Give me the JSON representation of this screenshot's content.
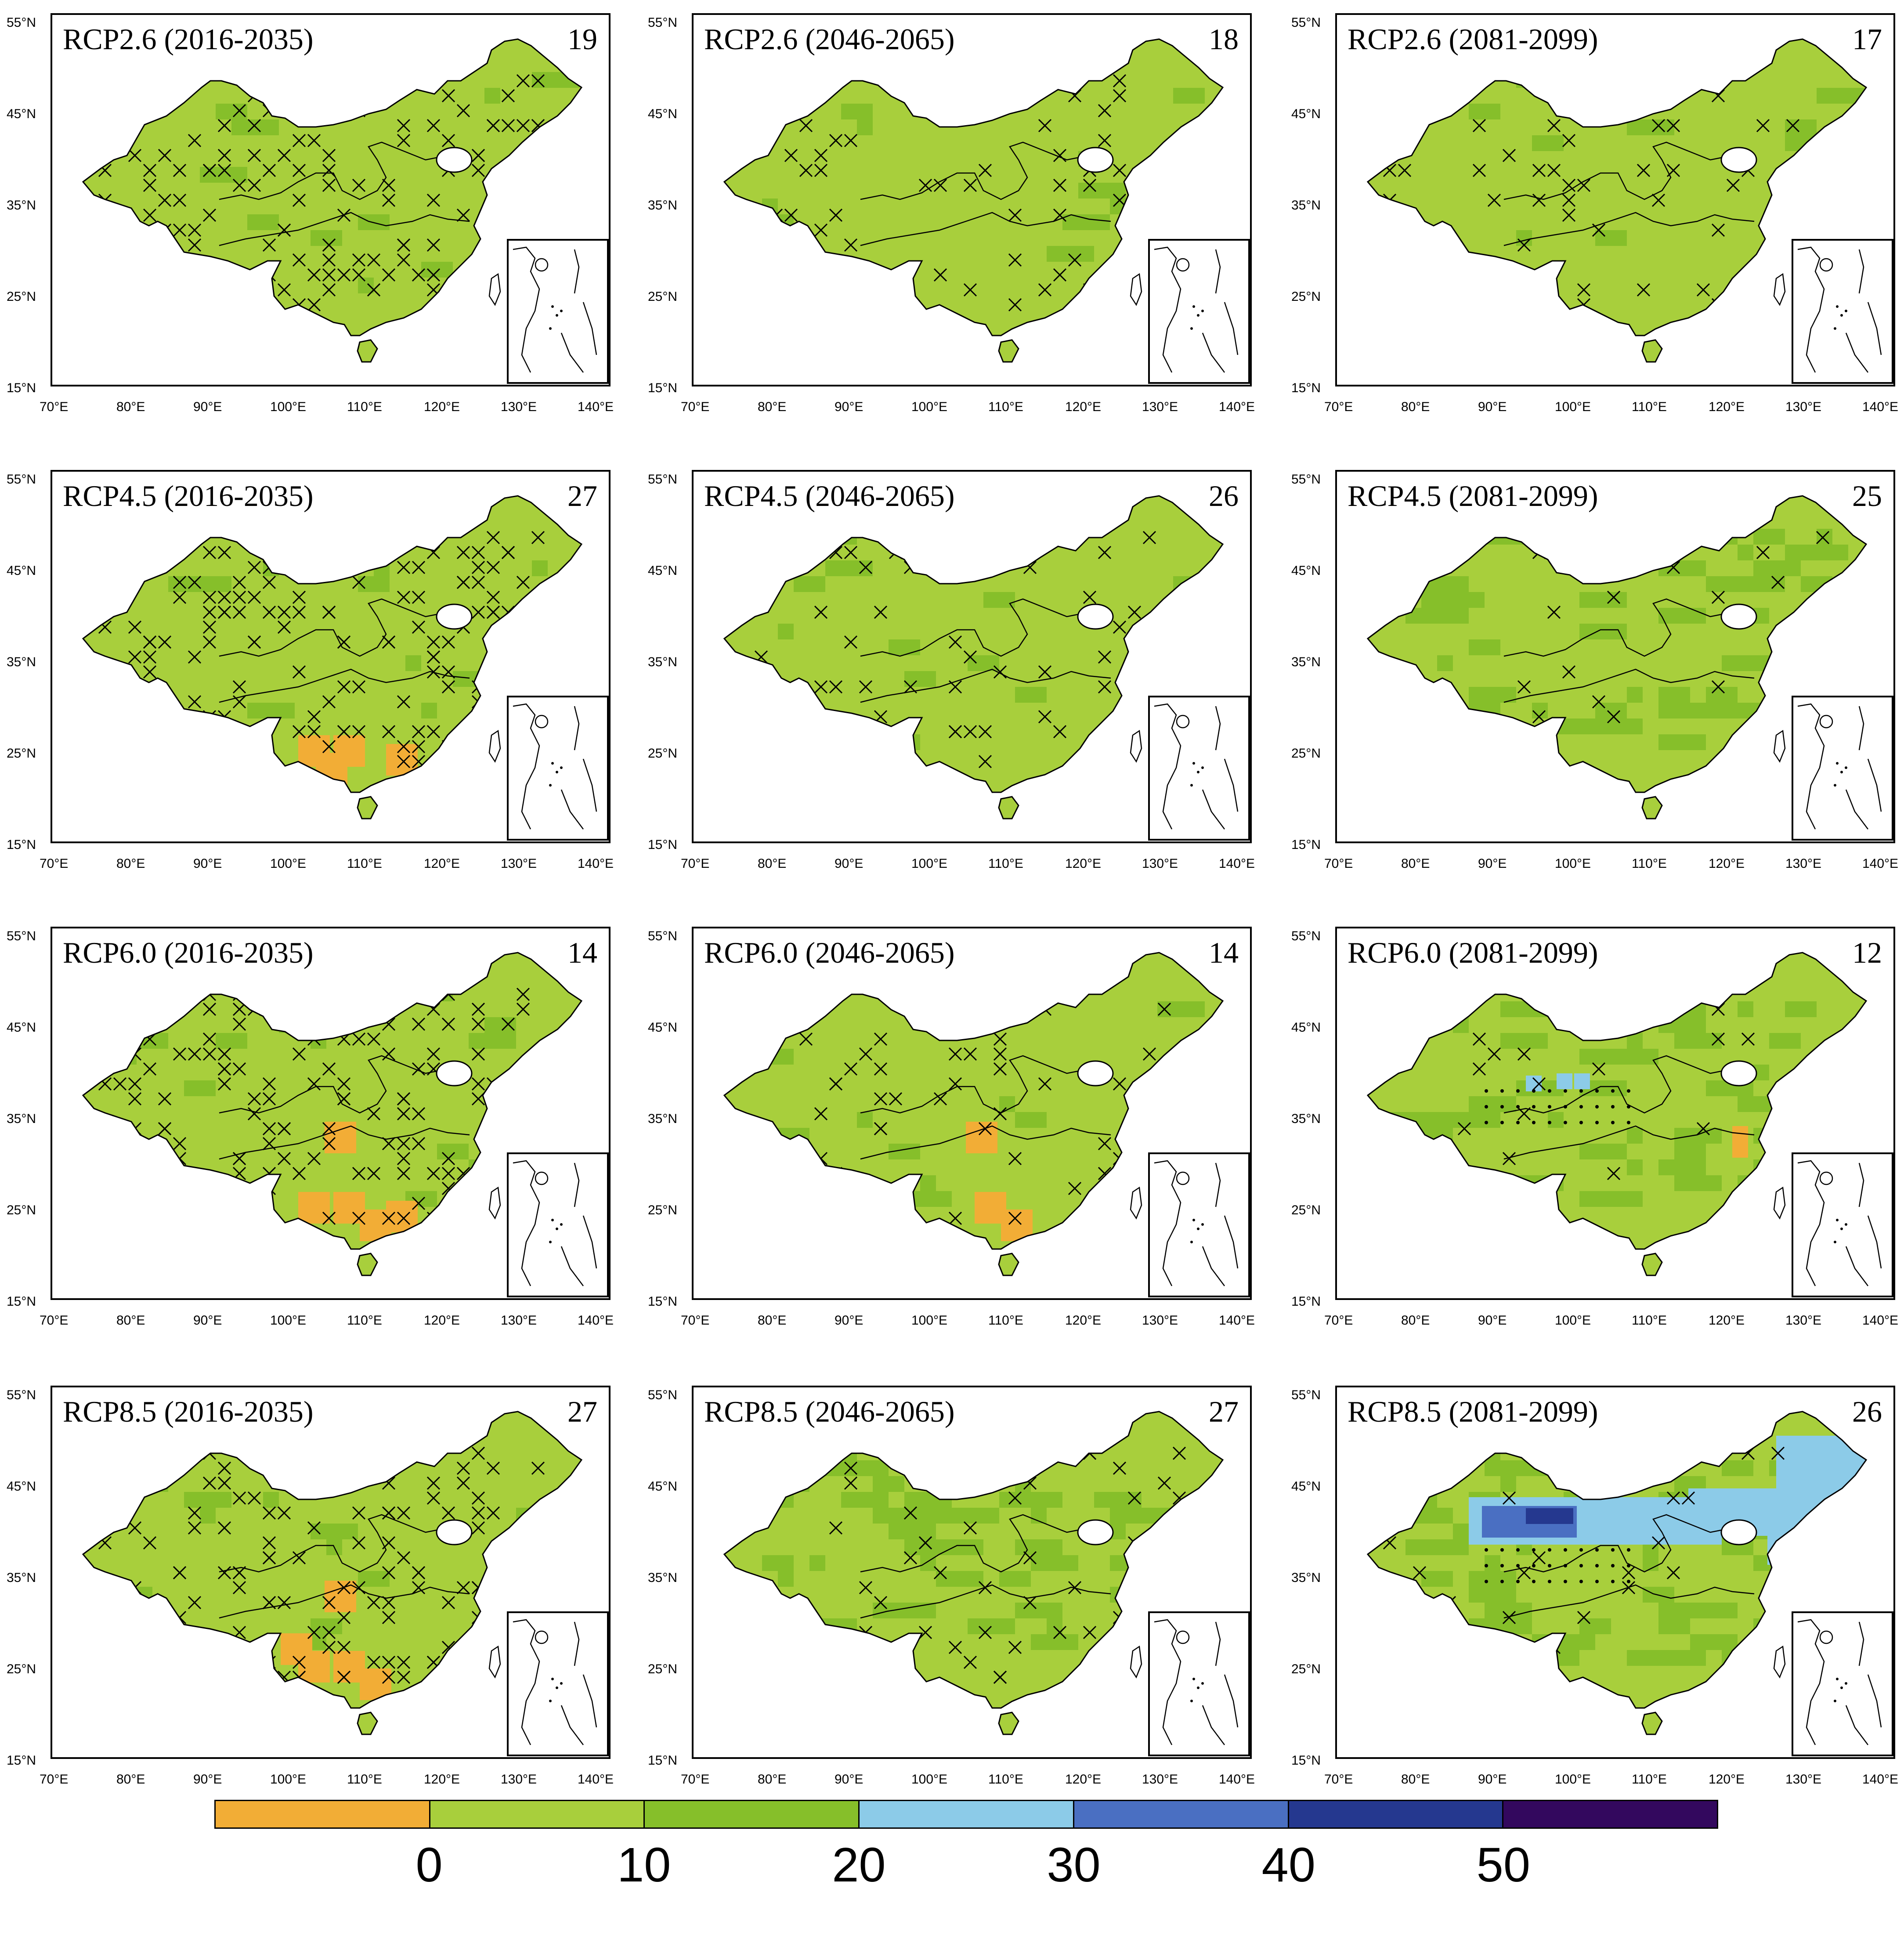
{
  "figure": {
    "x_ticks": [
      "70°E",
      "80°E",
      "90°E",
      "100°E",
      "110°E",
      "120°E",
      "130°E",
      "140°E"
    ],
    "y_ticks": [
      "55°N",
      "45°N",
      "35°N",
      "25°N",
      "15°N"
    ],
    "panels": [
      {
        "title": "RCP2.6 (2016-2035)",
        "count": "19",
        "level": 1,
        "extra": "none",
        "hatch": "heavy"
      },
      {
        "title": "RCP2.6 (2046-2065)",
        "count": "18",
        "level": 1,
        "extra": "none",
        "hatch": "medium"
      },
      {
        "title": "RCP2.6 (2081-2099)",
        "count": "17",
        "level": 1,
        "extra": "none",
        "hatch": "medium"
      },
      {
        "title": "RCP4.5 (2016-2035)",
        "count": "27",
        "level": 1,
        "extra": "orange",
        "hatch": "heavy"
      },
      {
        "title": "RCP4.5 (2046-2065)",
        "count": "26",
        "level": 1,
        "extra": "none",
        "hatch": "medium"
      },
      {
        "title": "RCP4.5 (2081-2099)",
        "count": "25",
        "level": 2,
        "extra": "none",
        "hatch": "light"
      },
      {
        "title": "RCP6.0 (2016-2035)",
        "count": "14",
        "level": 1,
        "extra": "orange",
        "hatch": "heavy"
      },
      {
        "title": "RCP6.0 (2046-2065)",
        "count": "14",
        "level": 1,
        "extra": "orange",
        "hatch": "medium"
      },
      {
        "title": "RCP6.0 (2081-2099)",
        "count": "12",
        "level": 2,
        "extra": "lightblue",
        "hatch": "light"
      },
      {
        "title": "RCP8.5 (2016-2035)",
        "count": "27",
        "level": 1,
        "extra": "orange",
        "hatch": "heavy"
      },
      {
        "title": "RCP8.5 (2046-2065)",
        "count": "27",
        "level": 2,
        "extra": "none",
        "hatch": "medium"
      },
      {
        "title": "RCP8.5 (2081-2099)",
        "count": "26",
        "level": 3,
        "extra": "blue",
        "hatch": "light"
      }
    ]
  },
  "colorbar": {
    "labels": [
      "0",
      "10",
      "20",
      "30",
      "40",
      "50"
    ],
    "colors": [
      "#f2ad36",
      "#a8cf3c",
      "#86bf2a",
      "#8ccbe8",
      "#4a6fc2",
      "#25388f",
      "#33085e"
    ]
  },
  "map_colors": {
    "orange": "#f2ad36",
    "light_green": "#a8cf3c",
    "green": "#86bf2a",
    "light_blue": "#8ccbe8",
    "blue": "#4a6fc2",
    "dark_blue": "#25388f"
  }
}
